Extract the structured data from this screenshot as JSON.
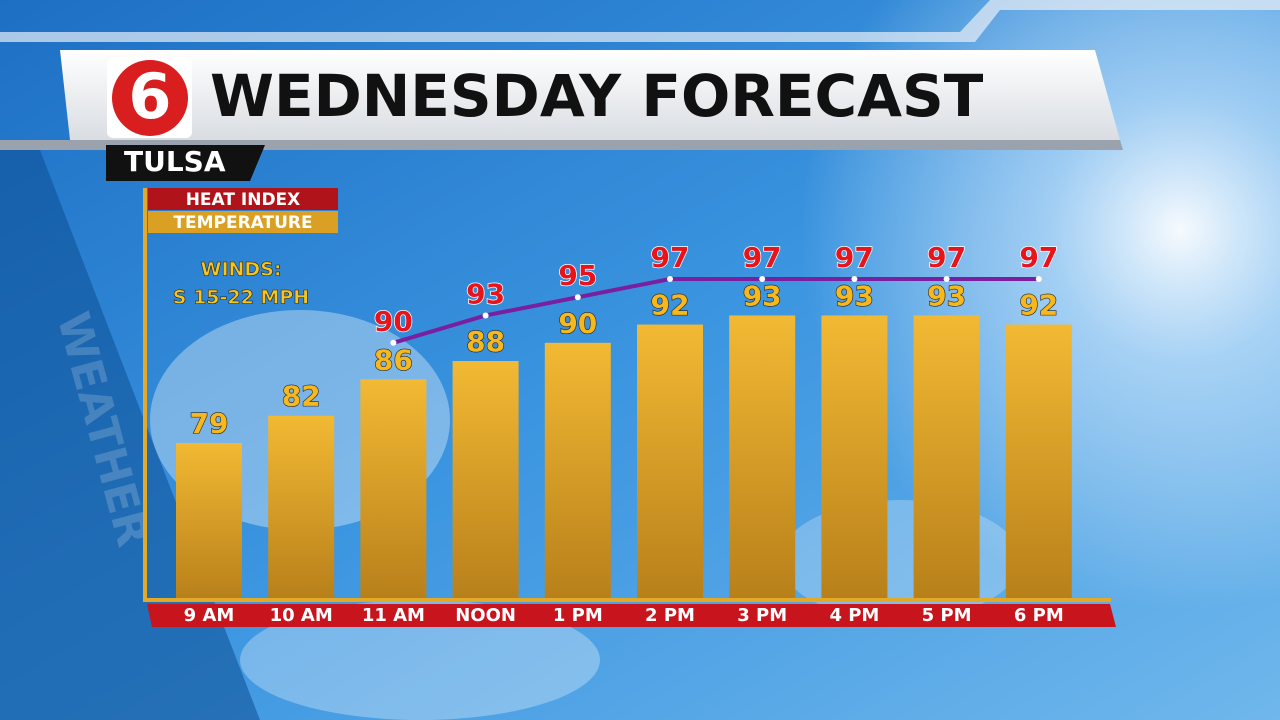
{
  "logo": "6",
  "station": "TULSA",
  "watermark": "WEATHER",
  "chart_data": {
    "type": "bar-line",
    "title": "WEDNESDAY FORECAST",
    "annotations": [
      "WINDS:",
      "S 15-22 MPH"
    ],
    "categories": [
      "9 AM",
      "10 AM",
      "11 AM",
      "NOON",
      "1 PM",
      "2 PM",
      "3 PM",
      "4 PM",
      "5 PM",
      "6 PM"
    ],
    "series": [
      {
        "name": "HEAT INDEX",
        "type": "line",
        "color": "#7a1fa0",
        "label_color": "#e8141c",
        "values": [
          null,
          null,
          90,
          93,
          95,
          97,
          97,
          97,
          97,
          97
        ]
      },
      {
        "name": "TEMPERATURE",
        "type": "bar",
        "color": "#e3aa2a",
        "label_color": "#f7b81e",
        "values": [
          79,
          82,
          86,
          88,
          90,
          92,
          93,
          93,
          93,
          92
        ]
      }
    ]
  }
}
